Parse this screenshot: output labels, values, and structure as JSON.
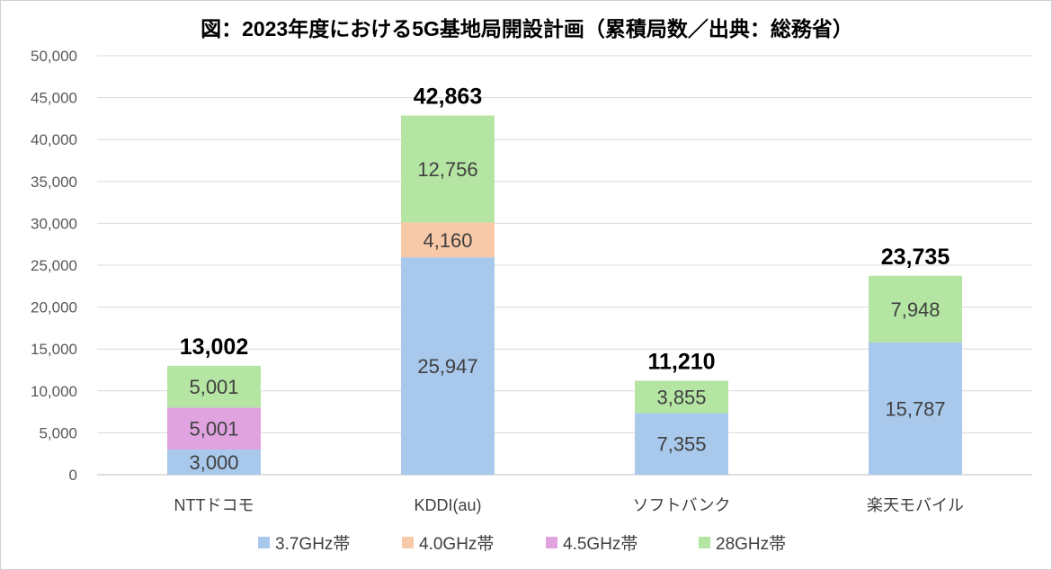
{
  "chart_data": {
    "type": "bar",
    "stacked": true,
    "title": "図：2023年度における5G基地局開設計画（累積局数／出典：総務省）",
    "categories": [
      "NTTドコモ",
      "KDDI(au)",
      "ソフトバンク",
      "楽天モバイル"
    ],
    "series": [
      {
        "name": "3.7GHz帯",
        "color": "#a9c9ec",
        "values": [
          3000,
          25947,
          7355,
          15787
        ],
        "labels": [
          "3,000",
          "25,947",
          "7,355",
          "15,787"
        ]
      },
      {
        "name": "4.0GHz帯",
        "color": "#f8c9a8",
        "values": [
          0,
          4160,
          0,
          0
        ],
        "labels": [
          "",
          "4,160",
          "",
          ""
        ]
      },
      {
        "name": "4.5GHz帯",
        "color": "#e0a3e0",
        "values": [
          5001,
          0,
          0,
          0
        ],
        "labels": [
          "5,001",
          "",
          "",
          ""
        ]
      },
      {
        "name": "28GHz帯",
        "color": "#b5e5a3",
        "values": [
          5001,
          12756,
          3855,
          7948
        ],
        "labels": [
          "5,001",
          "12,756",
          "3,855",
          "7,948"
        ]
      }
    ],
    "totals": [
      "13,002",
      "42,863",
      "11,210",
      "23,735"
    ],
    "ylim": [
      0,
      50000
    ],
    "yticks": [
      "0",
      "5,000",
      "10,000",
      "15,000",
      "20,000",
      "25,000",
      "30,000",
      "35,000",
      "40,000",
      "45,000",
      "50,000"
    ],
    "grid": true,
    "legend": "bottom",
    "xlabel": "",
    "ylabel": ""
  }
}
